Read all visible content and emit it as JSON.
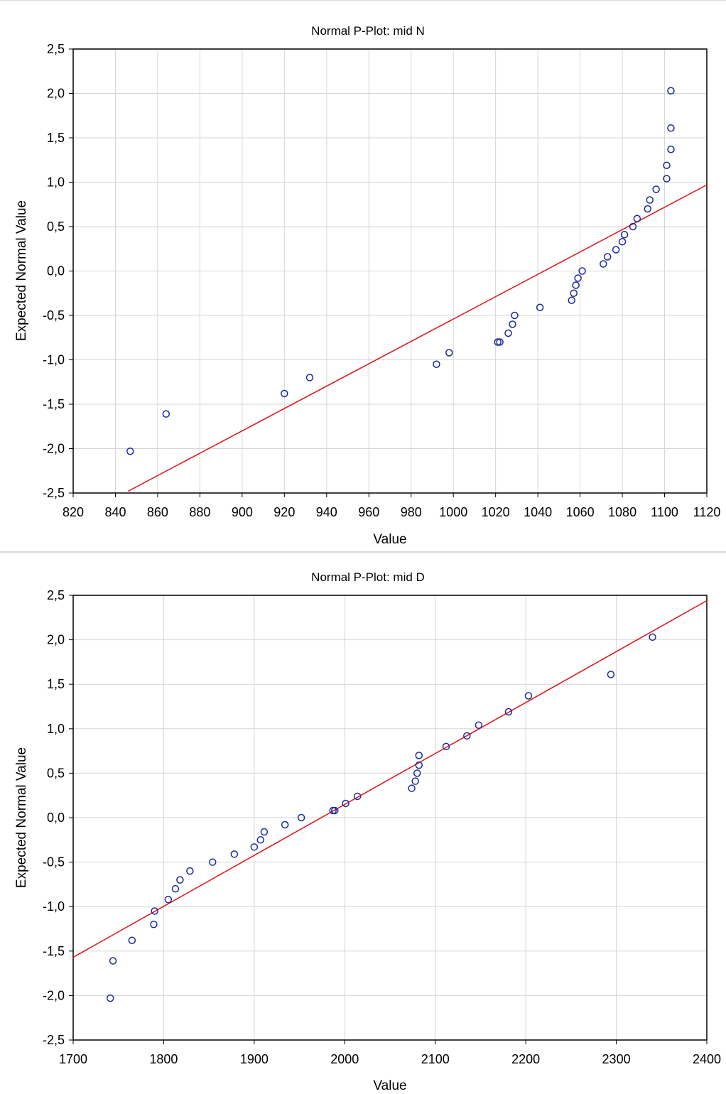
{
  "chart_data": [
    {
      "type": "scatter",
      "title": "Normal P-Plot: mid N",
      "xlabel": "Value",
      "ylabel": "Expected Normal Value",
      "xlim": [
        820,
        1120
      ],
      "ylim": [
        -2.5,
        2.5
      ],
      "xticks": [
        "820",
        "840",
        "860",
        "880",
        "900",
        "920",
        "940",
        "960",
        "980",
        "1000",
        "1020",
        "1040",
        "1060",
        "1080",
        "1100",
        "1120"
      ],
      "yticks": [
        "2,5",
        "2,0",
        "1,5",
        "1,0",
        "0,5",
        "0,0",
        "-0,5",
        "-1,0",
        "-1,5",
        "-2,0",
        "-2,5"
      ],
      "grid": true,
      "marker_color": "#1c2a9c",
      "line_color": "#e01010",
      "fit_line": {
        "x": [
          846,
          1120
        ],
        "y": [
          -2.48,
          0.97
        ]
      },
      "points": [
        {
          "x": 847,
          "y": -2.03
        },
        {
          "x": 864,
          "y": -1.61
        },
        {
          "x": 920,
          "y": -1.38
        },
        {
          "x": 932,
          "y": -1.2
        },
        {
          "x": 992,
          "y": -1.05
        },
        {
          "x": 998,
          "y": -0.92
        },
        {
          "x": 1021,
          "y": -0.8
        },
        {
          "x": 1022,
          "y": -0.8
        },
        {
          "x": 1026,
          "y": -0.7
        },
        {
          "x": 1028,
          "y": -0.6
        },
        {
          "x": 1029,
          "y": -0.5
        },
        {
          "x": 1041,
          "y": -0.41
        },
        {
          "x": 1056,
          "y": -0.33
        },
        {
          "x": 1057,
          "y": -0.25
        },
        {
          "x": 1058,
          "y": -0.16
        },
        {
          "x": 1059,
          "y": -0.08
        },
        {
          "x": 1061,
          "y": 0.0
        },
        {
          "x": 1071,
          "y": 0.08
        },
        {
          "x": 1073,
          "y": 0.16
        },
        {
          "x": 1077,
          "y": 0.24
        },
        {
          "x": 1080,
          "y": 0.33
        },
        {
          "x": 1081,
          "y": 0.41
        },
        {
          "x": 1085,
          "y": 0.5
        },
        {
          "x": 1087,
          "y": 0.59
        },
        {
          "x": 1092,
          "y": 0.7
        },
        {
          "x": 1093,
          "y": 0.8
        },
        {
          "x": 1096,
          "y": 0.92
        },
        {
          "x": 1101,
          "y": 1.04
        },
        {
          "x": 1101,
          "y": 1.19
        },
        {
          "x": 1103,
          "y": 1.37
        },
        {
          "x": 1103,
          "y": 1.61
        },
        {
          "x": 1103,
          "y": 2.03
        }
      ]
    },
    {
      "type": "scatter",
      "title": "Normal P-Plot: mid D",
      "xlabel": "Value",
      "ylabel": "Expected Normal Value",
      "xlim": [
        1700,
        2400
      ],
      "ylim": [
        -2.5,
        2.5
      ],
      "xticks": [
        "1700",
        "1800",
        "1900",
        "2000",
        "2100",
        "2200",
        "2300",
        "2400"
      ],
      "yticks": [
        "2,5",
        "2,0",
        "1,5",
        "1,0",
        "0,5",
        "0,0",
        "-0,5",
        "-1,0",
        "-1,5",
        "-2,0",
        "-2,5"
      ],
      "grid": true,
      "marker_color": "#1c2a9c",
      "line_color": "#e01010",
      "fit_line": {
        "x": [
          1700,
          2400
        ],
        "y": [
          -1.57,
          2.44
        ]
      },
      "points": [
        {
          "x": 1741,
          "y": -2.03
        },
        {
          "x": 1744,
          "y": -1.61
        },
        {
          "x": 1765,
          "y": -1.38
        },
        {
          "x": 1789,
          "y": -1.2
        },
        {
          "x": 1790,
          "y": -1.05
        },
        {
          "x": 1805,
          "y": -0.92
        },
        {
          "x": 1813,
          "y": -0.8
        },
        {
          "x": 1818,
          "y": -0.7
        },
        {
          "x": 1829,
          "y": -0.6
        },
        {
          "x": 1854,
          "y": -0.5
        },
        {
          "x": 1878,
          "y": -0.41
        },
        {
          "x": 1900,
          "y": -0.33
        },
        {
          "x": 1907,
          "y": -0.25
        },
        {
          "x": 1911,
          "y": -0.16
        },
        {
          "x": 1934,
          "y": -0.08
        },
        {
          "x": 1952,
          "y": 0.0
        },
        {
          "x": 1987,
          "y": 0.08
        },
        {
          "x": 1989,
          "y": 0.08
        },
        {
          "x": 2001,
          "y": 0.16
        },
        {
          "x": 2014,
          "y": 0.24
        },
        {
          "x": 2074,
          "y": 0.33
        },
        {
          "x": 2078,
          "y": 0.41
        },
        {
          "x": 2080,
          "y": 0.5
        },
        {
          "x": 2082,
          "y": 0.59
        },
        {
          "x": 2082,
          "y": 0.7
        },
        {
          "x": 2112,
          "y": 0.8
        },
        {
          "x": 2135,
          "y": 0.92
        },
        {
          "x": 2148,
          "y": 1.04
        },
        {
          "x": 2181,
          "y": 1.19
        },
        {
          "x": 2203,
          "y": 1.37
        },
        {
          "x": 2294,
          "y": 1.61
        },
        {
          "x": 2340,
          "y": 2.03
        }
      ]
    }
  ]
}
